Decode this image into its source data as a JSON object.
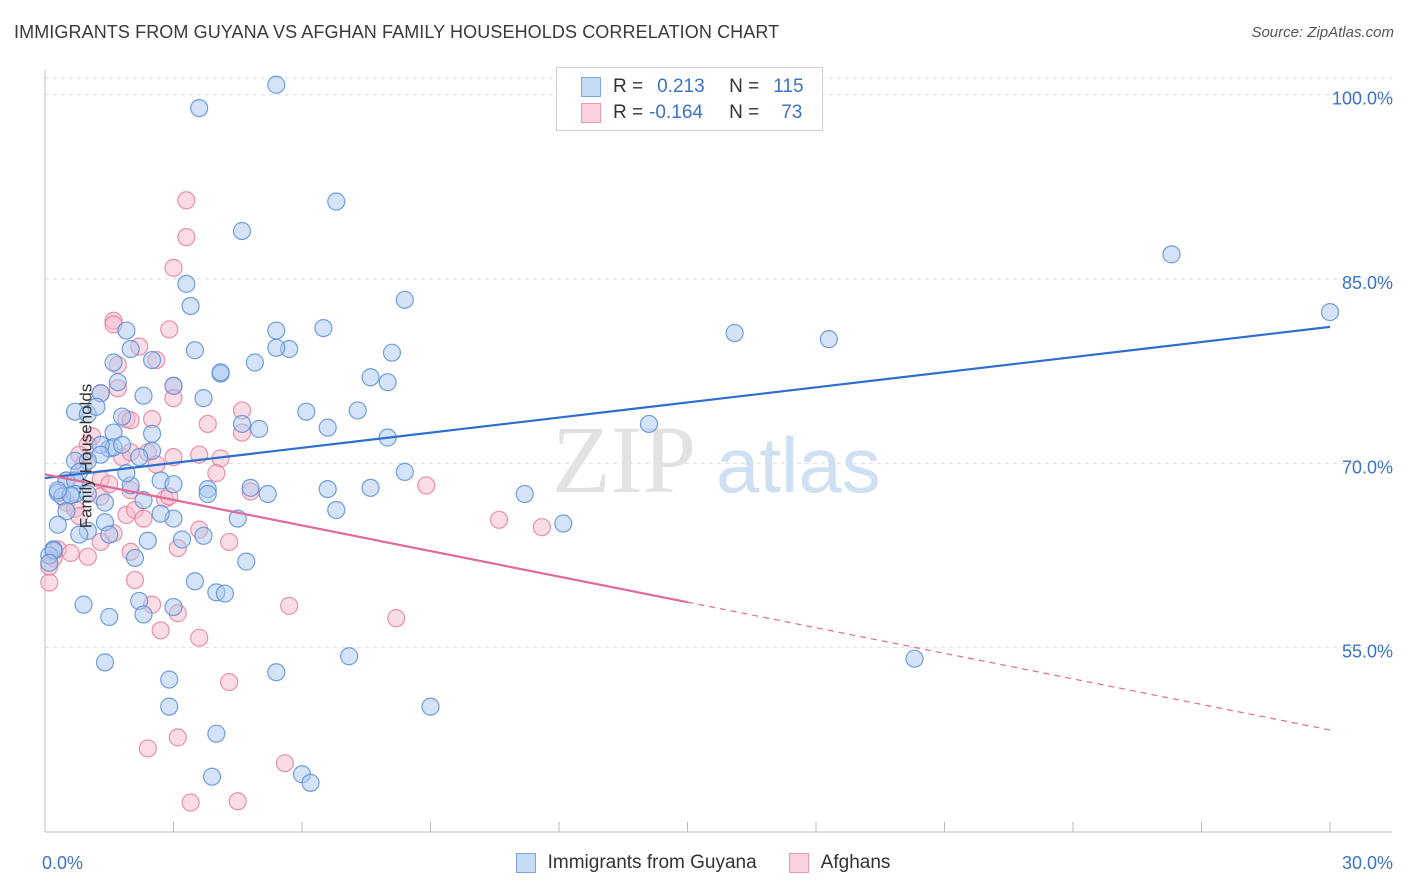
{
  "header": {
    "title": "IMMIGRANTS FROM GUYANA VS AFGHAN FAMILY HOUSEHOLDS CORRELATION CHART",
    "source": "Source: ZipAtlas.com"
  },
  "watermark": {
    "zip": "ZIP",
    "atlas": "atlas"
  },
  "legend": {
    "rows": [
      {
        "r_label": "R =",
        "r_value": "0.213",
        "n_label": "N =",
        "n_value": "115"
      },
      {
        "r_label": "R =",
        "r_value": "-0.164",
        "n_label": "N =",
        "n_value": "73"
      }
    ]
  },
  "colors": {
    "blue_fill": "#a9c8f0",
    "blue_stroke": "#5b8fd6",
    "blue_line": "#2d6fcf",
    "pink_fill": "#f6b9cc",
    "pink_stroke": "#e57fa0",
    "pink_line": "#e06a98",
    "tick_label": "#3b73c8",
    "grid": "#dddddd"
  },
  "chart_data": {
    "type": "scatter",
    "title": "IMMIGRANTS FROM GUYANA VS AFGHAN FAMILY HOUSEHOLDS CORRELATION CHART",
    "xlabel": "",
    "ylabel": "Family Households",
    "xlim": [
      0,
      30
    ],
    "ylim": [
      40.0,
      102.0
    ],
    "x_tick_labels": [
      "0.0%",
      "30.0%"
    ],
    "y_ticks": [
      55.0,
      70.0,
      85.0,
      100.0
    ],
    "y_tick_labels": [
      "55.0%",
      "70.0%",
      "85.0%",
      "100.0%"
    ],
    "grid": "horizontal dashed",
    "legend_position": "top-center",
    "series": [
      {
        "name": "Immigrants from Guyana",
        "color": "#a9c8f0",
        "R": 0.213,
        "N": 115,
        "trend": {
          "x": [
            0,
            30
          ],
          "y": [
            68.8,
            81.1
          ],
          "dashed_from": null
        },
        "points": [
          [
            5.4,
            100.8
          ],
          [
            3.6,
            98.9
          ],
          [
            6.8,
            91.3
          ],
          [
            4.6,
            88.9
          ],
          [
            26.3,
            87.0
          ],
          [
            30.0,
            82.3
          ],
          [
            3.3,
            84.6
          ],
          [
            8.4,
            83.3
          ],
          [
            3.4,
            82.8
          ],
          [
            1.9,
            80.8
          ],
          [
            5.4,
            80.8
          ],
          [
            6.5,
            81.0
          ],
          [
            16.1,
            80.6
          ],
          [
            18.3,
            80.1
          ],
          [
            2.0,
            79.3
          ],
          [
            3.5,
            79.2
          ],
          [
            5.7,
            79.3
          ],
          [
            5.4,
            79.4
          ],
          [
            8.1,
            79.0
          ],
          [
            2.5,
            78.4
          ],
          [
            1.6,
            78.2
          ],
          [
            4.9,
            78.2
          ],
          [
            4.1,
            77.3
          ],
          [
            4.1,
            77.4
          ],
          [
            7.6,
            77.0
          ],
          [
            8.0,
            76.6
          ],
          [
            3.0,
            76.3
          ],
          [
            2.3,
            75.5
          ],
          [
            1.3,
            75.7
          ],
          [
            3.7,
            75.3
          ],
          [
            0.7,
            74.2
          ],
          [
            1.0,
            74.0
          ],
          [
            6.1,
            74.2
          ],
          [
            7.3,
            74.3
          ],
          [
            1.8,
            73.8
          ],
          [
            4.6,
            73.2
          ],
          [
            14.1,
            73.2
          ],
          [
            5.0,
            72.8
          ],
          [
            6.6,
            72.9
          ],
          [
            1.6,
            72.5
          ],
          [
            2.5,
            72.4
          ],
          [
            8.0,
            72.1
          ],
          [
            1.5,
            71.2
          ],
          [
            1.6,
            71.3
          ],
          [
            1.8,
            71.5
          ],
          [
            1.3,
            71.5
          ],
          [
            2.5,
            71.0
          ],
          [
            1.3,
            70.7
          ],
          [
            2.2,
            70.5
          ],
          [
            0.7,
            70.2
          ],
          [
            1.0,
            70.2
          ],
          [
            0.8,
            69.3
          ],
          [
            0.5,
            68.6
          ],
          [
            0.7,
            68.6
          ],
          [
            2.0,
            68.2
          ],
          [
            4.8,
            68.0
          ],
          [
            7.6,
            68.0
          ],
          [
            6.6,
            67.9
          ],
          [
            3.8,
            67.9
          ],
          [
            2.7,
            68.6
          ],
          [
            0.3,
            67.6
          ],
          [
            0.7,
            67.5
          ],
          [
            0.4,
            67.3
          ],
          [
            0.6,
            67.4
          ],
          [
            1.0,
            67.5
          ],
          [
            0.3,
            67.8
          ],
          [
            3.0,
            68.3
          ],
          [
            1.4,
            66.8
          ],
          [
            2.3,
            67.0
          ],
          [
            3.8,
            67.5
          ],
          [
            0.5,
            66.1
          ],
          [
            1.4,
            65.2
          ],
          [
            3.0,
            65.5
          ],
          [
            4.5,
            65.5
          ],
          [
            0.3,
            65.0
          ],
          [
            1.0,
            64.5
          ],
          [
            3.7,
            64.1
          ],
          [
            3.2,
            63.8
          ],
          [
            0.8,
            64.2
          ],
          [
            2.4,
            63.7
          ],
          [
            1.5,
            64.2
          ],
          [
            0.2,
            63.0
          ],
          [
            0.1,
            62.5
          ],
          [
            2.1,
            62.3
          ],
          [
            4.7,
            62.0
          ],
          [
            3.5,
            60.4
          ],
          [
            4.0,
            59.5
          ],
          [
            4.2,
            59.4
          ],
          [
            0.9,
            58.5
          ],
          [
            2.2,
            58.8
          ],
          [
            3.0,
            58.3
          ],
          [
            2.3,
            57.7
          ],
          [
            1.5,
            57.5
          ],
          [
            7.1,
            54.3
          ],
          [
            20.3,
            54.1
          ],
          [
            1.4,
            53.8
          ],
          [
            5.4,
            53.0
          ],
          [
            2.9,
            52.4
          ],
          [
            9.0,
            50.2
          ],
          [
            2.9,
            50.2
          ],
          [
            4.0,
            48.0
          ],
          [
            3.9,
            44.5
          ],
          [
            6.0,
            44.7
          ],
          [
            6.2,
            44.0
          ],
          [
            0.2,
            62.9
          ],
          [
            0.1,
            61.9
          ],
          [
            1.7,
            76.6
          ],
          [
            1.2,
            74.6
          ],
          [
            5.2,
            67.5
          ],
          [
            8.4,
            69.3
          ],
          [
            11.2,
            67.5
          ],
          [
            12.1,
            65.1
          ],
          [
            2.7,
            65.9
          ],
          [
            6.8,
            66.2
          ],
          [
            1.9,
            69.2
          ]
        ]
      },
      {
        "name": "Afghans",
        "color": "#f6b9cc",
        "R": -0.164,
        "N": 73,
        "trend": {
          "x": [
            0,
            30
          ],
          "y": [
            69.1,
            48.3
          ],
          "dashed_from": 15.0
        },
        "points": [
          [
            3.3,
            91.4
          ],
          [
            3.3,
            88.4
          ],
          [
            3.0,
            85.9
          ],
          [
            1.6,
            81.6
          ],
          [
            1.6,
            81.3
          ],
          [
            2.9,
            80.9
          ],
          [
            2.2,
            79.5
          ],
          [
            2.6,
            78.4
          ],
          [
            1.7,
            78.0
          ],
          [
            1.7,
            76.1
          ],
          [
            3.0,
            76.3
          ],
          [
            1.3,
            75.7
          ],
          [
            3.0,
            75.3
          ],
          [
            4.6,
            74.3
          ],
          [
            3.8,
            73.2
          ],
          [
            2.5,
            73.6
          ],
          [
            1.9,
            73.6
          ],
          [
            1.1,
            72.2
          ],
          [
            1.0,
            71.5
          ],
          [
            1.8,
            70.5
          ],
          [
            2.4,
            70.9
          ],
          [
            3.0,
            70.5
          ],
          [
            0.8,
            70.7
          ],
          [
            4.1,
            70.4
          ],
          [
            2.6,
            69.9
          ],
          [
            2.0,
            70.9
          ],
          [
            1.3,
            68.7
          ],
          [
            4.0,
            69.2
          ],
          [
            0.9,
            69.9
          ],
          [
            8.9,
            68.2
          ],
          [
            0.5,
            68.6
          ],
          [
            4.8,
            67.7
          ],
          [
            1.3,
            67.3
          ],
          [
            2.0,
            67.8
          ],
          [
            2.8,
            67.1
          ],
          [
            2.9,
            67.3
          ],
          [
            0.5,
            66.8
          ],
          [
            1.9,
            65.8
          ],
          [
            0.7,
            66.3
          ],
          [
            1.6,
            64.3
          ],
          [
            1.3,
            63.6
          ],
          [
            3.6,
            64.6
          ],
          [
            10.6,
            65.4
          ],
          [
            11.6,
            64.8
          ],
          [
            0.3,
            63.0
          ],
          [
            0.6,
            62.7
          ],
          [
            1.0,
            62.4
          ],
          [
            2.0,
            62.8
          ],
          [
            2.1,
            60.5
          ],
          [
            0.1,
            60.3
          ],
          [
            2.5,
            58.5
          ],
          [
            3.1,
            57.8
          ],
          [
            5.7,
            58.4
          ],
          [
            8.2,
            57.4
          ],
          [
            2.7,
            56.4
          ],
          [
            3.6,
            55.8
          ],
          [
            4.3,
            52.2
          ],
          [
            3.1,
            47.7
          ],
          [
            2.4,
            46.8
          ],
          [
            5.6,
            45.6
          ],
          [
            3.4,
            42.4
          ],
          [
            4.5,
            42.5
          ],
          [
            0.2,
            62.3
          ],
          [
            0.1,
            61.6
          ],
          [
            0.8,
            65.7
          ],
          [
            3.1,
            63.1
          ],
          [
            4.3,
            63.6
          ],
          [
            2.1,
            66.2
          ],
          [
            2.3,
            65.5
          ],
          [
            1.5,
            68.3
          ],
          [
            4.6,
            72.5
          ],
          [
            2.0,
            73.5
          ],
          [
            3.6,
            70.7
          ]
        ]
      }
    ]
  }
}
